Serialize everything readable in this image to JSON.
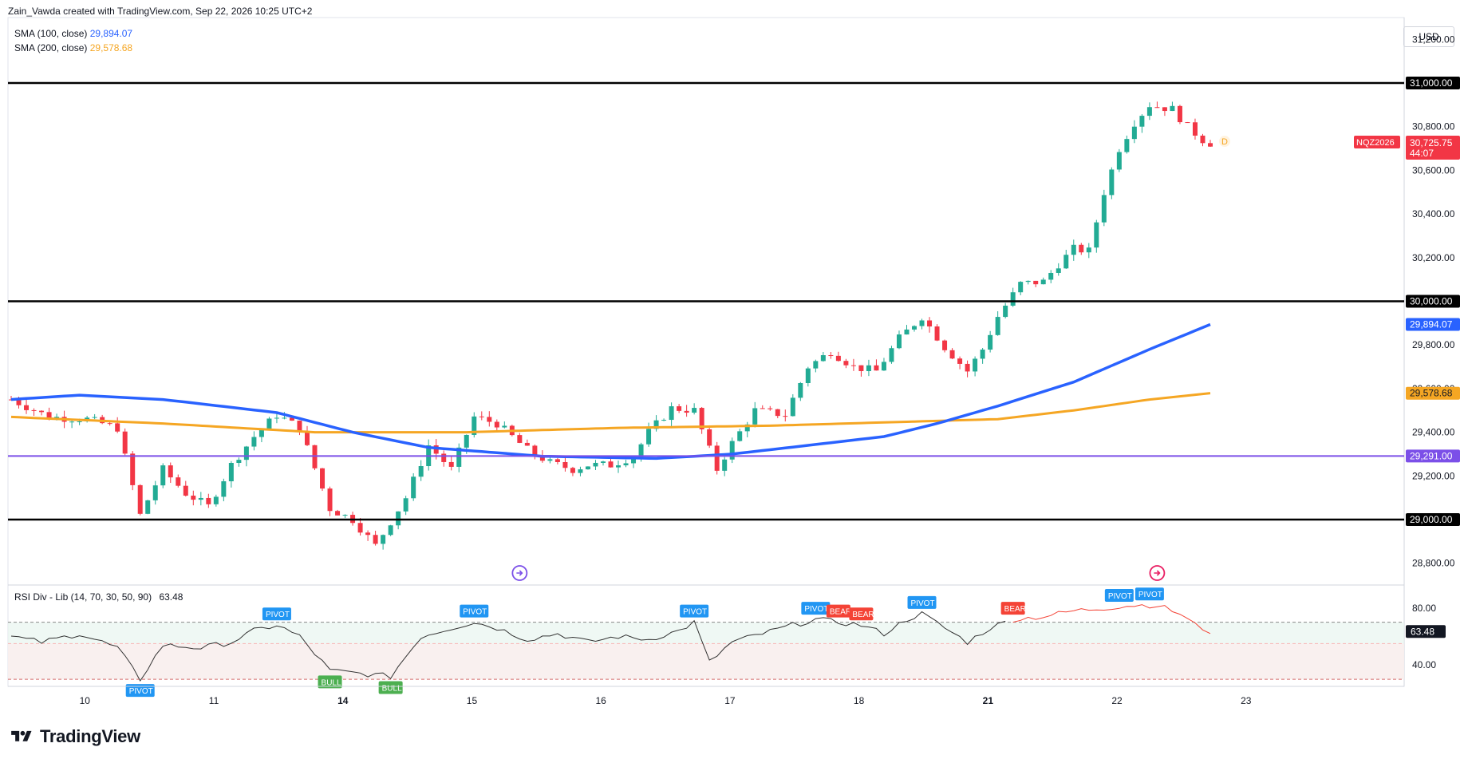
{
  "header": {
    "credit": "Zain_Vawda created with TradingView.com, Sep 22, 2026 10:25 UTC+2"
  },
  "legend": {
    "sma100_label": "SMA (100, close)",
    "sma100_value": "29,894.07",
    "sma200_label": "SMA (200, close)",
    "sma200_value": "29,578.68"
  },
  "currency": "USD",
  "symbol_tag": {
    "symbol": "NQZ2026",
    "price": "30,725.75",
    "countdown": "44:07",
    "marker": "D"
  },
  "rsi_legend": {
    "label": "RSI Div - Lib (14, 70, 30, 50, 90)",
    "value": "63.48"
  },
  "brand": {
    "name": "TradingView"
  },
  "colors": {
    "up": "#22ab94",
    "down": "#f23645",
    "sma100": "#2962ff",
    "sma200": "#f5a623",
    "level": "#000000",
    "purple_level": "#7b4fe8",
    "pivot": "#2196f3",
    "bull": "#4caf50",
    "bear": "#f44336"
  },
  "chart_data": {
    "type": "candlestick",
    "ylim": [
      28700,
      31300
    ],
    "y_ticks": [
      "28,800.00",
      "29,000.00",
      "29,200.00",
      "29,400.00",
      "29,600.00",
      "29,800.00",
      "30,000.00",
      "30,200.00",
      "30,400.00",
      "30,600.00",
      "30,800.00",
      "31,000.00",
      "31,200.00"
    ],
    "x_tick_labels": [
      "10",
      "11",
      "14",
      "15",
      "16",
      "17",
      "18",
      "21",
      "22",
      "23"
    ],
    "levels": [
      {
        "value": 31000,
        "label": "31,000.00"
      },
      {
        "value": 30000,
        "label": "30,000.00"
      },
      {
        "value": 29000,
        "label": "29,000.00"
      },
      {
        "value": 29291,
        "label": "29,291.00"
      }
    ],
    "sma_tags": [
      {
        "value": 29894.07,
        "label": "29,894.07"
      },
      {
        "value": 29578.68,
        "label": "29,578.68"
      }
    ],
    "close_path": [
      [
        0,
        29550
      ],
      [
        5,
        29470
      ],
      [
        10,
        29460
      ],
      [
        14,
        29420
      ],
      [
        17,
        29020
      ],
      [
        20,
        29230
      ],
      [
        23,
        29120
      ],
      [
        26,
        29060
      ],
      [
        29,
        29250
      ],
      [
        32,
        29380
      ],
      [
        35,
        29480
      ],
      [
        38,
        29420
      ],
      [
        42,
        29050
      ],
      [
        45,
        29000
      ],
      [
        48,
        28880
      ],
      [
        52,
        29100
      ],
      [
        55,
        29340
      ],
      [
        58,
        29230
      ],
      [
        61,
        29470
      ],
      [
        64,
        29440
      ],
      [
        68,
        29320
      ],
      [
        71,
        29260
      ],
      [
        74,
        29230
      ],
      [
        76,
        29250
      ],
      [
        79,
        29250
      ],
      [
        82,
        29290
      ],
      [
        84,
        29400
      ],
      [
        87,
        29510
      ],
      [
        90,
        29500
      ],
      [
        93,
        29230
      ],
      [
        95,
        29350
      ],
      [
        98,
        29500
      ],
      [
        102,
        29480
      ],
      [
        105,
        29700
      ],
      [
        108,
        29770
      ],
      [
        111,
        29700
      ],
      [
        114,
        29680
      ],
      [
        117,
        29830
      ],
      [
        120,
        29930
      ],
      [
        123,
        29790
      ],
      [
        126,
        29680
      ],
      [
        128,
        29780
      ],
      [
        130,
        29930
      ],
      [
        133,
        30080
      ],
      [
        136,
        30090
      ],
      [
        138,
        30170
      ],
      [
        140,
        30240
      ],
      [
        142,
        30230
      ],
      [
        144,
        30500
      ],
      [
        146,
        30700
      ],
      [
        148,
        30820
      ],
      [
        150,
        30900
      ],
      [
        153,
        30880
      ],
      [
        155,
        30800
      ],
      [
        157,
        30740
      ],
      [
        158,
        30725
      ]
    ],
    "sma100": [
      [
        0,
        29550
      ],
      [
        9,
        29570
      ],
      [
        20,
        29550
      ],
      [
        35,
        29490
      ],
      [
        45,
        29400
      ],
      [
        55,
        29330
      ],
      [
        70,
        29290
      ],
      [
        85,
        29280
      ],
      [
        95,
        29300
      ],
      [
        105,
        29340
      ],
      [
        115,
        29380
      ],
      [
        122,
        29440
      ],
      [
        130,
        29520
      ],
      [
        140,
        29630
      ],
      [
        150,
        29780
      ],
      [
        158,
        29894
      ]
    ],
    "sma200": [
      [
        0,
        29470
      ],
      [
        20,
        29440
      ],
      [
        40,
        29400
      ],
      [
        60,
        29400
      ],
      [
        80,
        29420
      ],
      [
        100,
        29430
      ],
      [
        120,
        29450
      ],
      [
        130,
        29460
      ],
      [
        140,
        29500
      ],
      [
        150,
        29550
      ],
      [
        158,
        29579
      ]
    ],
    "candle_count": 159,
    "rsi": {
      "ylim": [
        25,
        95
      ],
      "ticks": [
        "80.00",
        "40.00"
      ],
      "overbought": 70,
      "oversold": 30,
      "last": 63.48,
      "values": [
        [
          0,
          60
        ],
        [
          4,
          56
        ],
        [
          9,
          62
        ],
        [
          14,
          52
        ],
        [
          17,
          30
        ],
        [
          20,
          54
        ],
        [
          25,
          52
        ],
        [
          29,
          56
        ],
        [
          32,
          64
        ],
        [
          35,
          68
        ],
        [
          38,
          60
        ],
        [
          42,
          36
        ],
        [
          46,
          34
        ],
        [
          50,
          32
        ],
        [
          54,
          60
        ],
        [
          58,
          66
        ],
        [
          61,
          70
        ],
        [
          64,
          66
        ],
        [
          68,
          58
        ],
        [
          72,
          62
        ],
        [
          76,
          56
        ],
        [
          80,
          60
        ],
        [
          84,
          58
        ],
        [
          88,
          64
        ],
        [
          90,
          70
        ],
        [
          92,
          42
        ],
        [
          95,
          56
        ],
        [
          99,
          62
        ],
        [
          103,
          68
        ],
        [
          106,
          72
        ],
        [
          109,
          70
        ],
        [
          112,
          68
        ],
        [
          115,
          62
        ],
        [
          118,
          72
        ],
        [
          120,
          76
        ],
        [
          123,
          66
        ],
        [
          126,
          56
        ],
        [
          129,
          66
        ],
        [
          132,
          72
        ],
        [
          136,
          74
        ],
        [
          140,
          78
        ],
        [
          144,
          80
        ],
        [
          148,
          82
        ],
        [
          151,
          82
        ],
        [
          154,
          76
        ],
        [
          156,
          68
        ],
        [
          158,
          63.48
        ]
      ],
      "markers": [
        {
          "x": 17,
          "kind": "PIVOT",
          "pos": "below"
        },
        {
          "x": 35,
          "kind": "PIVOT",
          "pos": "above"
        },
        {
          "x": 42,
          "kind": "BULL",
          "pos": "below"
        },
        {
          "x": 50,
          "kind": "BULL",
          "pos": "below"
        },
        {
          "x": 61,
          "kind": "PIVOT",
          "pos": "above"
        },
        {
          "x": 90,
          "kind": "PIVOT",
          "pos": "above"
        },
        {
          "x": 106,
          "kind": "PIVOT",
          "pos": "above"
        },
        {
          "x": 109,
          "kind": "BEAR",
          "pos": "above"
        },
        {
          "x": 112,
          "kind": "BEAR",
          "pos": "above"
        },
        {
          "x": 120,
          "kind": "PIVOT",
          "pos": "above"
        },
        {
          "x": 132,
          "kind": "BEAR",
          "pos": "above"
        },
        {
          "x": 146,
          "kind": "PIVOT",
          "pos": "above"
        },
        {
          "x": 150,
          "kind": "PIVOT",
          "pos": "above"
        }
      ]
    }
  }
}
